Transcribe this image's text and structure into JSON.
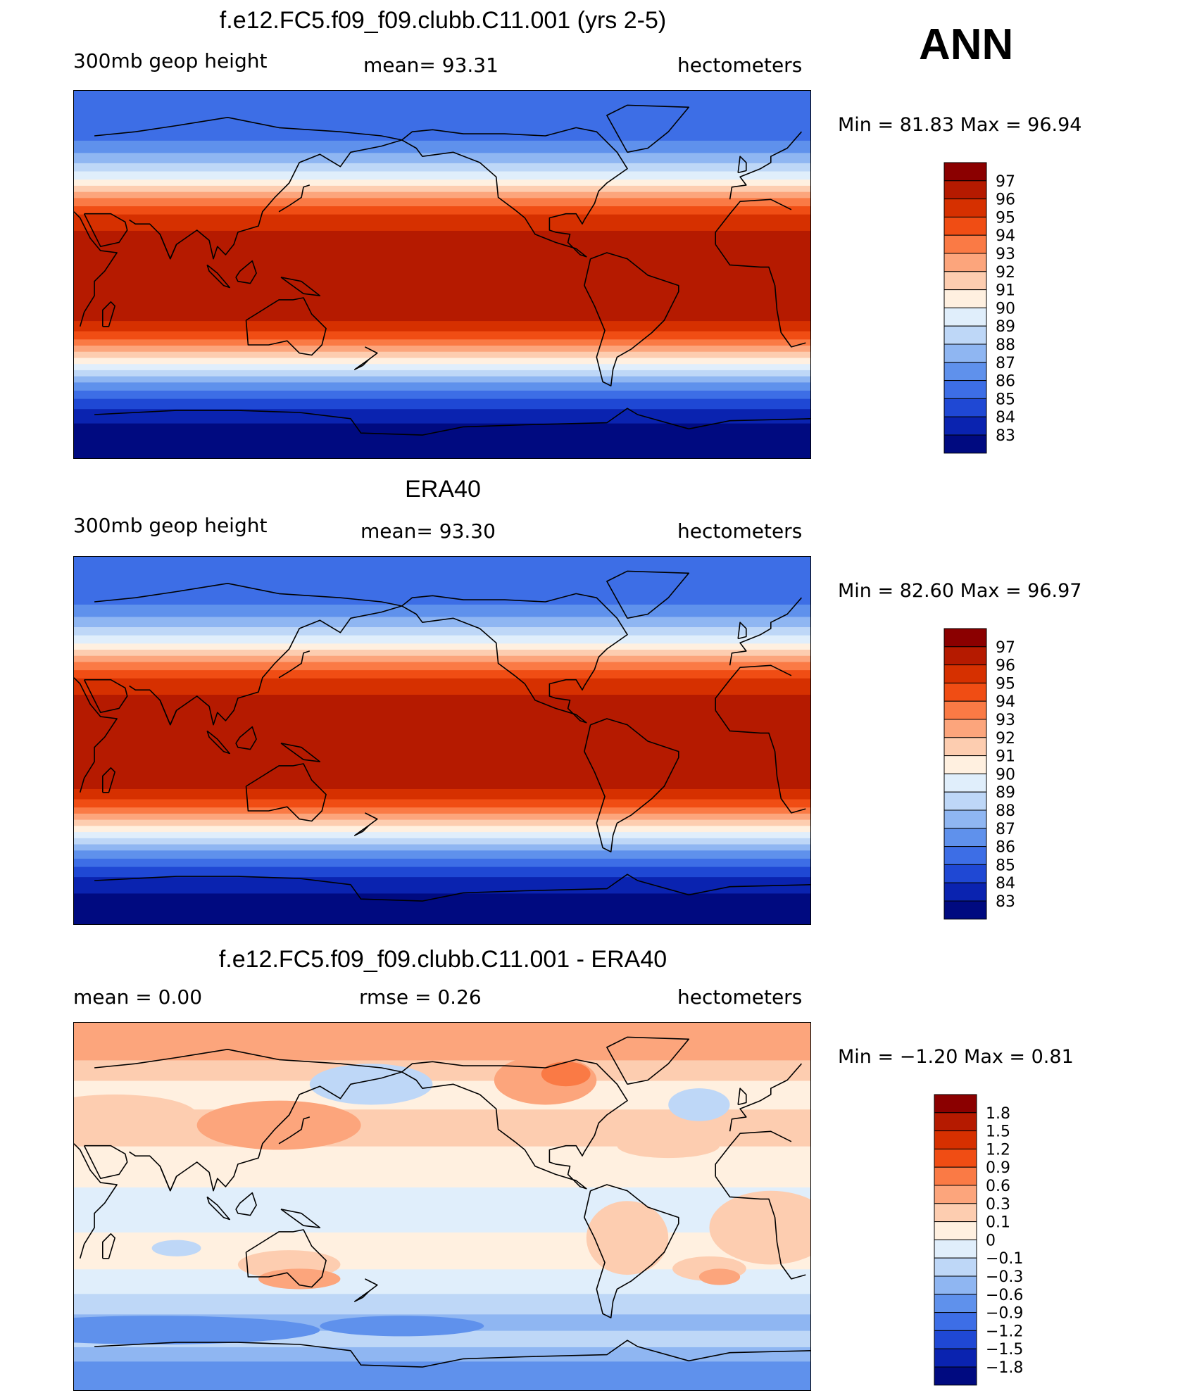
{
  "season": "ANN",
  "panels": [
    {
      "id": "model",
      "title": "f.e12.FC5.f09_f09.clubb.C11.001 (yrs 2-5)",
      "left_label": "300mb  geop  height",
      "mean_label": "mean=   93.31",
      "units": "hectometers",
      "minmax": "Min  =    81.83  Max  =    96.94",
      "levels": [
        "97",
        "96",
        "95",
        "94",
        "93",
        "92",
        "91",
        "90",
        "89",
        "88",
        "87",
        "86",
        "85",
        "84",
        "83"
      ],
      "colors": [
        "#8b0000",
        "#b51a00",
        "#d63000",
        "#f04d14",
        "#fa7a45",
        "#fca57c",
        "#fdcdb0",
        "#fff0e0",
        "#e0eefb",
        "#bed7f7",
        "#8fb6f2",
        "#5f91ec",
        "#3d6ee6",
        "#1f48d4",
        "#0a23b0",
        "#000a80"
      ],
      "bands": [
        [
          -90,
          "#000a80"
        ],
        [
          -72,
          "#0a23b0"
        ],
        [
          -65,
          "#1f48d4"
        ],
        [
          -60,
          "#3d6ee6"
        ],
        [
          -56,
          "#5f91ec"
        ],
        [
          -52,
          "#8fb6f2"
        ],
        [
          -49,
          "#bed7f7"
        ],
        [
          -46,
          "#e0eefb"
        ],
        [
          -43,
          "#fff0e0"
        ],
        [
          -40,
          "#fdcdb0"
        ],
        [
          -37,
          "#fca57c"
        ],
        [
          -34,
          "#fa7a45"
        ],
        [
          -31,
          "#f04d14"
        ],
        [
          -27,
          "#d63000"
        ],
        [
          -22,
          "#b51a00"
        ],
        [
          22,
          "#d63000"
        ],
        [
          30,
          "#f04d14"
        ],
        [
          34,
          "#fa7a45"
        ],
        [
          38,
          "#fca57c"
        ],
        [
          41,
          "#fdcdb0"
        ],
        [
          44,
          "#fff0e0"
        ],
        [
          47,
          "#e0eefb"
        ],
        [
          51,
          "#bed7f7"
        ],
        [
          55,
          "#8fb6f2"
        ],
        [
          60,
          "#5f91ec"
        ],
        [
          66,
          "#3d6ee6"
        ]
      ]
    },
    {
      "id": "obs",
      "title": "ERA40",
      "left_label": "300mb  geop  height",
      "mean_label": "mean=   93.30",
      "units": "hectometers",
      "minmax": "Min  =    82.60  Max  =    96.97",
      "levels": [
        "97",
        "96",
        "95",
        "94",
        "93",
        "92",
        "91",
        "90",
        "89",
        "88",
        "87",
        "86",
        "85",
        "84",
        "83"
      ],
      "colors": [
        "#8b0000",
        "#b51a00",
        "#d63000",
        "#f04d14",
        "#fa7a45",
        "#fca57c",
        "#fdcdb0",
        "#fff0e0",
        "#e0eefb",
        "#bed7f7",
        "#8fb6f2",
        "#5f91ec",
        "#3d6ee6",
        "#1f48d4",
        "#0a23b0",
        "#000a80"
      ],
      "bands": [
        [
          -90,
          "#000a80"
        ],
        [
          -74,
          "#0a23b0"
        ],
        [
          -66,
          "#1f48d4"
        ],
        [
          -61,
          "#3d6ee6"
        ],
        [
          -57,
          "#5f91ec"
        ],
        [
          -53,
          "#8fb6f2"
        ],
        [
          -50,
          "#bed7f7"
        ],
        [
          -47,
          "#e0eefb"
        ],
        [
          -44,
          "#fff0e0"
        ],
        [
          -41,
          "#fdcdb0"
        ],
        [
          -38,
          "#fca57c"
        ],
        [
          -35,
          "#fa7a45"
        ],
        [
          -32,
          "#f04d14"
        ],
        [
          -28,
          "#d63000"
        ],
        [
          -23,
          "#b51a00"
        ],
        [
          23,
          "#d63000"
        ],
        [
          31,
          "#f04d14"
        ],
        [
          35,
          "#fa7a45"
        ],
        [
          39,
          "#fca57c"
        ],
        [
          42,
          "#fdcdb0"
        ],
        [
          45,
          "#fff0e0"
        ],
        [
          48,
          "#e0eefb"
        ],
        [
          52,
          "#bed7f7"
        ],
        [
          56,
          "#8fb6f2"
        ],
        [
          61,
          "#5f91ec"
        ],
        [
          67,
          "#3d6ee6"
        ]
      ]
    },
    {
      "id": "diff",
      "title": "f.e12.FC5.f09_f09.clubb.C11.001 - ERA40",
      "left_label": "mean  =     0.00",
      "mean_label": "rmse  =     0.26",
      "units": "hectometers",
      "minmax": "Min  =   −1.20  Max  =     0.81",
      "levels": [
        "1.8",
        "1.5",
        "1.2",
        "0.9",
        "0.6",
        "0.3",
        "0.1",
        "0",
        "−0.1",
        "−0.3",
        "−0.6",
        "−0.9",
        "−1.2",
        "−1.5",
        "−1.8"
      ],
      "colors": [
        "#8b0000",
        "#b51a00",
        "#d63000",
        "#f04d14",
        "#fa7a45",
        "#fca57c",
        "#fdcdb0",
        "#fff0e0",
        "#e0eefb",
        "#bed7f7",
        "#8fb6f2",
        "#5f91ec",
        "#3d6ee6",
        "#1f48d4",
        "#0a23b0",
        "#000a80"
      ],
      "bands": [
        [
          -90,
          "#5f91ec"
        ],
        [
          -75,
          "#8fb6f2"
        ],
        [
          -68,
          "#bed7f7"
        ],
        [
          -60,
          "#8fb6f2"
        ],
        [
          -52,
          "#bed7f7"
        ],
        [
          -42,
          "#e0eefb"
        ],
        [
          -30,
          "#fff0e0"
        ],
        [
          -12,
          "#e0eefb"
        ],
        [
          10,
          "#fff0e0"
        ],
        [
          30,
          "#fdcdb0"
        ],
        [
          48,
          "#fff0e0"
        ],
        [
          62,
          "#fdcdb0"
        ],
        [
          72,
          "#fca57c"
        ]
      ],
      "blobs": [
        [
          130,
          40,
          40,
          12,
          "#fca57c"
        ],
        [
          50,
          45,
          40,
          10,
          "#fdcdb0"
        ],
        [
          -100,
          62,
          25,
          12,
          "#fca57c"
        ],
        [
          -90,
          65,
          12,
          6,
          "#fa7a45"
        ],
        [
          175,
          60,
          30,
          10,
          "#bed7f7"
        ],
        [
          -25,
          50,
          15,
          8,
          "#bed7f7"
        ],
        [
          -40,
          30,
          25,
          6,
          "#fdcdb0"
        ],
        [
          135,
          -28,
          25,
          7,
          "#fdcdb0"
        ],
        [
          140,
          -35,
          20,
          5,
          "#fca57c"
        ],
        [
          -20,
          -30,
          18,
          6,
          "#fdcdb0"
        ],
        [
          -15,
          -34,
          10,
          4,
          "#fca57c"
        ],
        [
          70,
          -60,
          80,
          7,
          "#5f91ec"
        ],
        [
          -170,
          -58,
          40,
          5,
          "#5f91ec"
        ],
        [
          10,
          -10,
          30,
          18,
          "#fdcdb0"
        ],
        [
          -60,
          -15,
          20,
          18,
          "#fdcdb0"
        ],
        [
          80,
          -20,
          12,
          4,
          "#bed7f7"
        ]
      ]
    }
  ]
}
